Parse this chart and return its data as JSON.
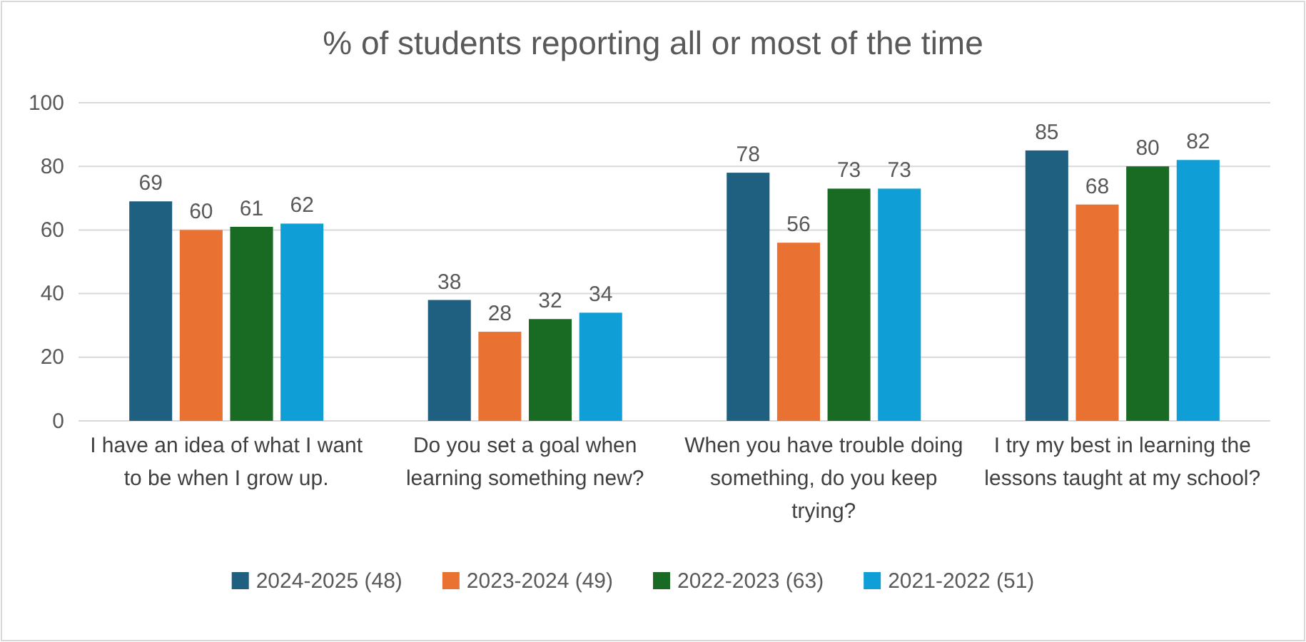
{
  "chart_data": {
    "type": "bar",
    "title": "% of students reporting all or most of the time",
    "categories": [
      "I have an idea of what I want to be when I grow up.",
      "Do you set a goal when learning something new?",
      "When you have trouble doing something, do you keep trying?",
      "I try my best in learning the lessons taught at my school?"
    ],
    "series": [
      {
        "name": "2024-2025 (48)",
        "color": "#1f5f7f",
        "values": [
          69,
          38,
          78,
          85
        ]
      },
      {
        "name": "2023-2024 (49)",
        "color": "#e97132",
        "values": [
          60,
          28,
          56,
          68
        ]
      },
      {
        "name": "2022-2023 (63)",
        "color": "#196b24",
        "values": [
          61,
          32,
          73,
          80
        ]
      },
      {
        "name": "2021-2022 (51)",
        "color": "#0f9ed5",
        "values": [
          62,
          34,
          73,
          82
        ]
      }
    ],
    "ylim": [
      0,
      100
    ],
    "yticks": [
      0,
      20,
      40,
      60,
      80,
      100
    ],
    "grid": "y",
    "legend": "bottom",
    "data_labels": true
  }
}
